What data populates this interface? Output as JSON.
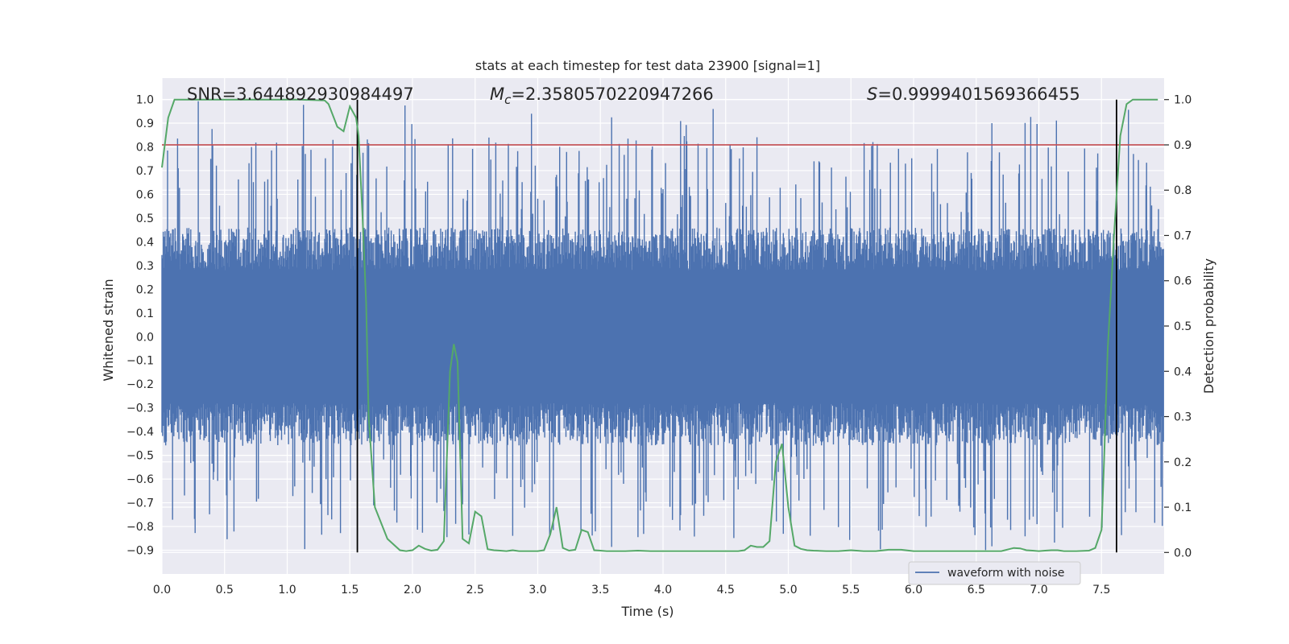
{
  "chart_data": {
    "type": "line",
    "title": "stats at each timestep for test data 23900 [signal=1]",
    "xlabel": "Time (s)",
    "ylabel": "Whitened strain",
    "y2label": "Detection probability",
    "xlim": [
      0,
      8
    ],
    "ylim": [
      -1.0,
      1.09
    ],
    "y2lim": [
      -0.0475,
      1.0475
    ],
    "x_ticks": [
      "0.0",
      "0.5",
      "1.0",
      "1.5",
      "2.0",
      "2.5",
      "3.0",
      "3.5",
      "4.0",
      "4.5",
      "5.0",
      "5.5",
      "6.0",
      "6.5",
      "7.0",
      "7.5"
    ],
    "y_ticks": [
      "1.0",
      "0.9",
      "0.8",
      "0.7",
      "0.6",
      "0.5",
      "0.4",
      "0.3",
      "0.2",
      "0.1",
      "0.0",
      "-0.1",
      "-0.2",
      "-0.3",
      "-0.4",
      "-0.5",
      "-0.6",
      "-0.7",
      "-0.8",
      "-0.9"
    ],
    "y2_ticks": [
      "1.0",
      "0.9",
      "0.8",
      "0.7",
      "0.6",
      "0.5",
      "0.4",
      "0.3",
      "0.2",
      "0.1",
      "0.0"
    ],
    "annotations": {
      "snr": "SNR=3.644892930984497",
      "mc_symbol": "M",
      "mc_sub": "c",
      "mc_value": "=2.3580570220947266",
      "s_symbol": "S",
      "s_value": "=0.9999401569366455"
    },
    "vertical_lines_x": [
      1.56,
      7.62
    ],
    "threshold_y2": 0.9,
    "series": [
      {
        "name": "waveform with noise",
        "axis": "left",
        "color": "#4c72b0",
        "kind": "noise",
        "envelope_max": 1.0,
        "envelope_min": -0.9
      },
      {
        "axis": "right",
        "color": "#55a868",
        "x": [
          0.0,
          0.05,
          0.1,
          0.2,
          0.4,
          0.6,
          0.8,
          1.0,
          1.1,
          1.2,
          1.3,
          1.33,
          1.4,
          1.45,
          1.5,
          1.55,
          1.57,
          1.6,
          1.63,
          1.65,
          1.7,
          1.8,
          1.9,
          1.95,
          2.0,
          2.05,
          2.1,
          2.15,
          2.2,
          2.25,
          2.3,
          2.33,
          2.36,
          2.4,
          2.45,
          2.5,
          2.55,
          2.6,
          2.65,
          2.7,
          2.75,
          2.8,
          2.85,
          2.9,
          3.0,
          3.05,
          3.1,
          3.15,
          3.2,
          3.25,
          3.3,
          3.35,
          3.4,
          3.45,
          3.5,
          3.55,
          3.6,
          3.7,
          3.8,
          3.9,
          4.0,
          4.1,
          4.2,
          4.3,
          4.4,
          4.5,
          4.6,
          4.65,
          4.7,
          4.75,
          4.8,
          4.85,
          4.9,
          4.95,
          5.0,
          5.05,
          5.1,
          5.15,
          5.2,
          5.3,
          5.4,
          5.5,
          5.6,
          5.7,
          5.8,
          5.9,
          6.0,
          6.1,
          6.2,
          6.3,
          6.4,
          6.5,
          6.6,
          6.7,
          6.8,
          6.85,
          6.9,
          6.95,
          7.0,
          7.05,
          7.1,
          7.15,
          7.2,
          7.3,
          7.4,
          7.45,
          7.5,
          7.52,
          7.55,
          7.6,
          7.65,
          7.7,
          7.75,
          7.8,
          7.9,
          7.95
        ],
        "y": [
          0.85,
          0.96,
          1.0,
          1.0,
          1.0,
          1.0,
          1.0,
          1.0,
          1.0,
          0.999,
          0.998,
          0.99,
          0.94,
          0.93,
          0.985,
          0.96,
          0.92,
          0.75,
          0.55,
          0.3,
          0.1,
          0.03,
          0.005,
          0.003,
          0.005,
          0.015,
          0.008,
          0.004,
          0.006,
          0.025,
          0.4,
          0.46,
          0.42,
          0.03,
          0.02,
          0.09,
          0.08,
          0.007,
          0.005,
          0.004,
          0.003,
          0.005,
          0.003,
          0.003,
          0.003,
          0.005,
          0.04,
          0.1,
          0.01,
          0.004,
          0.006,
          0.05,
          0.045,
          0.005,
          0.004,
          0.003,
          0.003,
          0.003,
          0.004,
          0.003,
          0.003,
          0.003,
          0.003,
          0.003,
          0.003,
          0.003,
          0.003,
          0.005,
          0.015,
          0.012,
          0.012,
          0.025,
          0.2,
          0.24,
          0.1,
          0.015,
          0.008,
          0.005,
          0.004,
          0.003,
          0.003,
          0.005,
          0.003,
          0.003,
          0.006,
          0.006,
          0.003,
          0.003,
          0.003,
          0.003,
          0.003,
          0.003,
          0.003,
          0.003,
          0.01,
          0.009,
          0.005,
          0.004,
          0.003,
          0.004,
          0.005,
          0.005,
          0.003,
          0.003,
          0.004,
          0.01,
          0.05,
          0.2,
          0.45,
          0.7,
          0.92,
          0.99,
          1.0,
          1.0,
          1.0,
          1.0
        ]
      }
    ],
    "legend": {
      "placement": "lower-right",
      "entries": [
        "waveform with noise"
      ]
    },
    "grid": true,
    "colors": {
      "background": "#eaeaf2",
      "grid": "#ffffff",
      "threshold": "#c44e52",
      "vline": "#000000"
    }
  }
}
